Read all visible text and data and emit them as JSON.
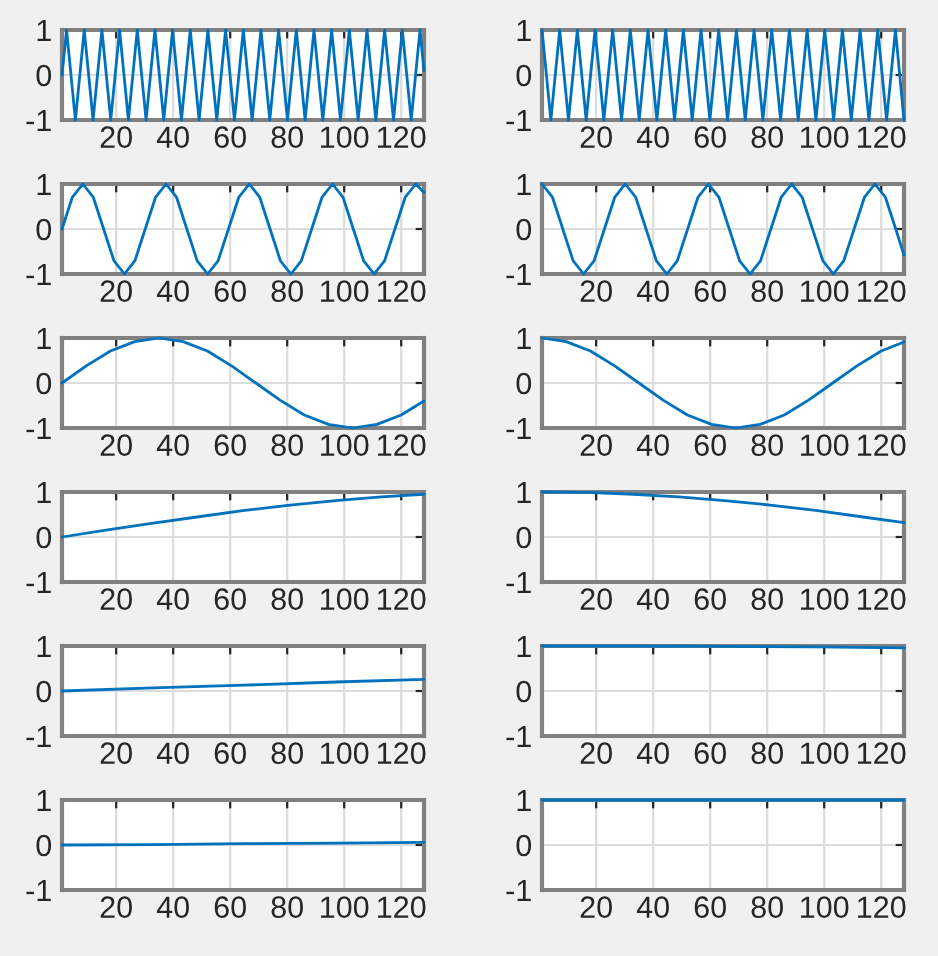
{
  "chart_data": [
    {
      "type": "line",
      "xlim": [
        1,
        128
      ],
      "xticks": [
        20,
        40,
        60,
        80,
        100,
        120
      ],
      "ylim": [
        -1,
        1
      ],
      "yticks": [
        -1,
        0,
        1
      ],
      "grid": true,
      "series": [
        {
          "color": "#0072bd",
          "x": [
            1,
            2.6,
            5.7,
            8.8,
            11.9,
            15.0,
            18.1,
            21.2,
            24.3,
            27.4,
            30.5,
            33.6,
            36.7,
            39.8,
            42.9,
            46.0,
            49.1,
            52.2,
            55.3,
            58.4,
            61.5,
            64.6,
            67.7,
            70.8,
            73.9,
            77.0,
            80.1,
            83.2,
            86.3,
            89.4,
            92.5,
            95.6,
            98.7,
            101.8,
            104.9,
            108.0,
            111.1,
            114.2,
            117.3,
            120.4,
            123.5,
            126.6,
            128
          ],
          "values": [
            0,
            1,
            -1,
            1,
            -1,
            1,
            -1,
            1,
            -1,
            1,
            -1,
            1,
            -1,
            1,
            -1,
            1,
            -1,
            1,
            -1,
            1,
            -1,
            1,
            -1,
            1,
            -1,
            1,
            -1,
            1,
            -1,
            1,
            -1,
            1,
            -1,
            1,
            -1,
            1,
            -1,
            1,
            -1,
            1,
            -1,
            1,
            0.1
          ]
        }
      ]
    },
    {
      "type": "line",
      "xlim": [
        1,
        128
      ],
      "xticks": [
        20,
        40,
        60,
        80,
        100,
        120
      ],
      "ylim": [
        -1,
        1
      ],
      "yticks": [
        -1,
        0,
        1
      ],
      "grid": true,
      "series": [
        {
          "color": "#0072bd",
          "x": [
            1,
            4.1,
            7.2,
            10.3,
            13.4,
            16.5,
            19.6,
            22.7,
            25.8,
            28.9,
            32.0,
            35.1,
            38.2,
            41.3,
            44.4,
            47.5,
            50.6,
            53.7,
            56.8,
            59.9,
            63.0,
            66.1,
            69.2,
            72.3,
            75.4,
            78.5,
            81.6,
            84.7,
            87.8,
            90.9,
            94.0,
            97.1,
            100.2,
            103.3,
            106.4,
            109.5,
            112.6,
            115.7,
            118.8,
            121.9,
            125.0,
            128
          ],
          "values": [
            1,
            -1,
            1,
            -1,
            1,
            -1,
            1,
            -1,
            1,
            -1,
            1,
            -1,
            1,
            -1,
            1,
            -1,
            1,
            -1,
            1,
            -1,
            1,
            -1,
            1,
            -1,
            1,
            -1,
            1,
            -1,
            1,
            -1,
            1,
            -1,
            1,
            -1,
            1,
            -1,
            1,
            -1,
            1,
            -1,
            1,
            -1
          ]
        }
      ]
    },
    {
      "type": "line",
      "xlim": [
        1,
        128
      ],
      "xticks": [
        20,
        40,
        60,
        80,
        100,
        120
      ],
      "ylim": [
        -1,
        1
      ],
      "yticks": [
        -1,
        0,
        1
      ],
      "grid": true,
      "series": [
        {
          "color": "#0072bd",
          "x": [
            1,
            4.65,
            8.3,
            11.95,
            15.6,
            19.25,
            22.9,
            26.55,
            30.2,
            33.85,
            37.5,
            41.15,
            44.8,
            48.45,
            52.1,
            55.75,
            59.4,
            63.05,
            66.7,
            70.35,
            74.0,
            77.65,
            81.3,
            84.95,
            88.6,
            92.25,
            95.9,
            99.55,
            103.2,
            106.85,
            110.5,
            114.15,
            117.8,
            121.45,
            125.1,
            128
          ],
          "values": [
            0,
            0.71,
            1,
            0.71,
            0,
            -0.71,
            -1,
            -0.71,
            0,
            0.71,
            1,
            0.71,
            0,
            -0.71,
            -1,
            -0.71,
            0,
            0.71,
            1,
            0.71,
            0,
            -0.71,
            -1,
            -0.71,
            0,
            0.71,
            1,
            0.71,
            0,
            -0.71,
            -1,
            -0.71,
            0,
            0.71,
            1,
            0.81
          ]
        }
      ]
    },
    {
      "type": "line",
      "xlim": [
        1,
        128
      ],
      "xticks": [
        20,
        40,
        60,
        80,
        100,
        120
      ],
      "ylim": [
        -1,
        1
      ],
      "yticks": [
        -1,
        0,
        1
      ],
      "grid": true,
      "series": [
        {
          "color": "#0072bd",
          "x": [
            1,
            4.65,
            8.3,
            11.95,
            15.6,
            19.25,
            22.9,
            26.55,
            30.2,
            33.85,
            37.5,
            41.15,
            44.8,
            48.45,
            52.1,
            55.75,
            59.4,
            63.05,
            66.7,
            70.35,
            74.0,
            77.65,
            81.3,
            84.95,
            88.6,
            92.25,
            95.9,
            99.55,
            103.2,
            106.85,
            110.5,
            114.15,
            117.8,
            121.45,
            125.1,
            128
          ],
          "values": [
            1,
            0.71,
            0,
            -0.71,
            -1,
            -0.71,
            0,
            0.71,
            1,
            0.71,
            0,
            -0.71,
            -1,
            -0.71,
            0,
            0.71,
            1,
            0.71,
            0,
            -0.71,
            -1,
            -0.71,
            0,
            0.71,
            1,
            0.71,
            0,
            -0.71,
            -1,
            -0.71,
            0,
            0.71,
            1,
            0.71,
            0,
            -0.58
          ]
        }
      ]
    },
    {
      "type": "line",
      "xlim": [
        1,
        128
      ],
      "xticks": [
        20,
        40,
        60,
        80,
        100,
        120
      ],
      "ylim": [
        -1,
        1
      ],
      "yticks": [
        -1,
        0,
        1
      ],
      "grid": true,
      "series": [
        {
          "color": "#0072bd",
          "x": [
            1,
            9.5,
            18,
            26.5,
            35,
            43.5,
            52,
            60.5,
            69,
            77.5,
            86,
            94.5,
            103,
            111.5,
            120,
            128
          ],
          "values": [
            0,
            0.38,
            0.71,
            0.92,
            1,
            0.92,
            0.71,
            0.38,
            0,
            -0.38,
            -0.71,
            -0.92,
            -1,
            -0.92,
            -0.71,
            -0.4
          ]
        }
      ]
    },
    {
      "type": "line",
      "xlim": [
        1,
        128
      ],
      "xticks": [
        20,
        40,
        60,
        80,
        100,
        120
      ],
      "ylim": [
        -1,
        1
      ],
      "yticks": [
        -1,
        0,
        1
      ],
      "grid": true,
      "series": [
        {
          "color": "#0072bd",
          "x": [
            1,
            9.5,
            18,
            26.5,
            35,
            43.5,
            52,
            60.5,
            69,
            77.5,
            86,
            94.5,
            103,
            111.5,
            120,
            128
          ],
          "values": [
            1,
            0.92,
            0.71,
            0.38,
            0,
            -0.38,
            -0.71,
            -0.92,
            -1,
            -0.92,
            -0.71,
            -0.38,
            0,
            0.38,
            0.71,
            0.91
          ]
        }
      ]
    },
    {
      "type": "line",
      "xlim": [
        1,
        128
      ],
      "xticks": [
        20,
        40,
        60,
        80,
        100,
        120
      ],
      "ylim": [
        -1,
        1
      ],
      "yticks": [
        -1,
        0,
        1
      ],
      "grid": true,
      "series": [
        {
          "color": "#0072bd",
          "x": [
            1,
            17,
            33,
            49,
            65,
            81,
            97,
            113,
            128
          ],
          "values": [
            0,
            0.16,
            0.31,
            0.45,
            0.59,
            0.71,
            0.81,
            0.89,
            0.95
          ]
        }
      ]
    },
    {
      "type": "line",
      "xlim": [
        1,
        128
      ],
      "xticks": [
        20,
        40,
        60,
        80,
        100,
        120
      ],
      "ylim": [
        -1,
        1
      ],
      "yticks": [
        -1,
        0,
        1
      ],
      "grid": true,
      "series": [
        {
          "color": "#0072bd",
          "x": [
            1,
            17,
            33,
            49,
            65,
            81,
            97,
            113,
            128
          ],
          "values": [
            1,
            0.99,
            0.95,
            0.89,
            0.81,
            0.71,
            0.59,
            0.45,
            0.32
          ]
        }
      ]
    },
    {
      "type": "line",
      "xlim": [
        1,
        128
      ],
      "xticks": [
        20,
        40,
        60,
        80,
        100,
        120
      ],
      "ylim": [
        -1,
        1
      ],
      "yticks": [
        -1,
        0,
        1
      ],
      "grid": true,
      "series": [
        {
          "color": "#0072bd",
          "x": [
            1,
            33,
            65,
            97,
            128
          ],
          "values": [
            0,
            0.07,
            0.13,
            0.2,
            0.26
          ]
        }
      ]
    },
    {
      "type": "line",
      "xlim": [
        1,
        128
      ],
      "xticks": [
        20,
        40,
        60,
        80,
        100,
        120
      ],
      "ylim": [
        -1,
        1
      ],
      "yticks": [
        -1,
        0,
        1
      ],
      "grid": true,
      "series": [
        {
          "color": "#0072bd",
          "x": [
            1,
            33,
            65,
            97,
            128
          ],
          "values": [
            1,
            1,
            0.99,
            0.98,
            0.96
          ]
        }
      ]
    },
    {
      "type": "line",
      "xlim": [
        1,
        128
      ],
      "xticks": [
        20,
        40,
        60,
        80,
        100,
        120
      ],
      "ylim": [
        -1,
        1
      ],
      "yticks": [
        -1,
        0,
        1
      ],
      "grid": true,
      "series": [
        {
          "color": "#0072bd",
          "x": [
            1,
            33,
            65,
            97,
            128
          ],
          "values": [
            0,
            0.01,
            0.03,
            0.04,
            0.06
          ]
        }
      ]
    },
    {
      "type": "line",
      "xlim": [
        1,
        128
      ],
      "xticks": [
        20,
        40,
        60,
        80,
        100,
        120
      ],
      "ylim": [
        -1,
        1
      ],
      "yticks": [
        -1,
        0,
        1
      ],
      "grid": true,
      "series": [
        {
          "color": "#0072bd",
          "x": [
            1,
            33,
            65,
            97,
            128
          ],
          "values": [
            1,
            1,
            1,
            1,
            1
          ]
        }
      ]
    }
  ]
}
